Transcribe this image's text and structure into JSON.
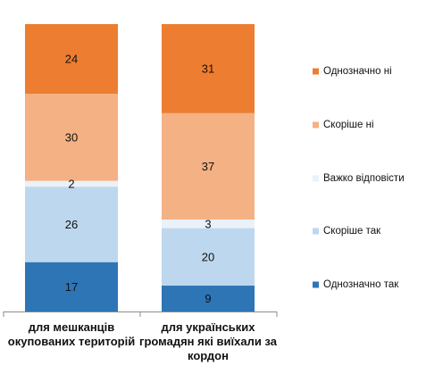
{
  "chart_data": {
    "type": "bar",
    "stacked": true,
    "normalized": true,
    "categories": [
      [
        "для мешканців",
        "окупованих територій"
      ],
      [
        "для українських",
        "громадян які виїхали за",
        "кордон"
      ]
    ],
    "series": [
      {
        "name": "Однозначно так",
        "color": "#2e75b6",
        "values": [
          17,
          9
        ]
      },
      {
        "name": "Скоріше так",
        "color": "#bdd7ee",
        "values": [
          26,
          20
        ]
      },
      {
        "name": "Важко відповісти",
        "color": "#eaf1f8",
        "values": [
          2,
          3
        ]
      },
      {
        "name": "Скоріше ні",
        "color": "#f4b183",
        "values": [
          30,
          37
        ]
      },
      {
        "name": "Однозначно ні",
        "color": "#ed7d31",
        "values": [
          24,
          31
        ]
      }
    ],
    "legend_position": "right",
    "ylim": [
      0,
      100
    ],
    "grid": false
  }
}
